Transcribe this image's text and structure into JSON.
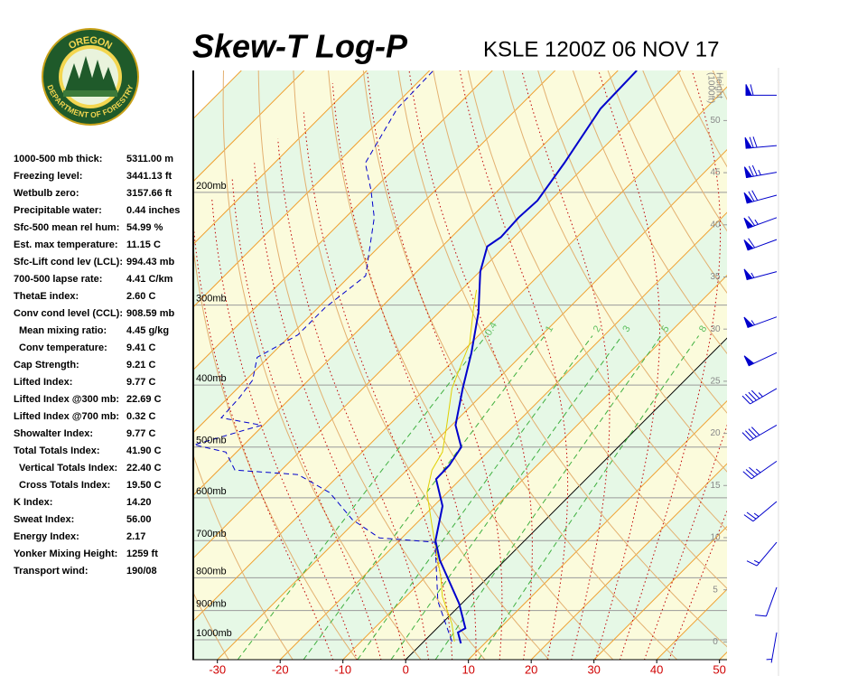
{
  "logo": {
    "top": "OREGON",
    "bottom": "DEPARTMENT OF FORESTRY"
  },
  "stats": [
    [
      "1000-500 mb thick:",
      "5311.00 m"
    ],
    [
      "Freezing level:",
      "3441.13 ft"
    ],
    [
      "Wetbulb zero:",
      "3157.66 ft"
    ],
    [
      "Precipitable water:",
      "0.44 inches"
    ],
    [
      "Sfc-500 mean rel hum:",
      "54.99 %"
    ],
    [
      "Est. max temperature:",
      "11.15 C"
    ],
    [
      "Sfc-Lift cond lev (LCL):",
      "994.43 mb"
    ],
    [
      "700-500 lapse rate:",
      "4.41 C/km"
    ],
    [
      "ThetaE index:",
      "2.60 C"
    ],
    [
      "Conv cond level (CCL):",
      "908.59 mb"
    ],
    [
      "Mean mixing ratio:",
      "4.45 g/kg"
    ],
    [
      "Conv temperature:",
      "9.41 C"
    ],
    [
      "Cap Strength:",
      "9.21 C"
    ],
    [
      "Lifted Index:",
      "9.77 C"
    ],
    [
      "Lifted Index @300 mb:",
      "22.69 C"
    ],
    [
      "Lifted Index @700 mb:",
      "0.32 C"
    ],
    [
      "Showalter Index:",
      "9.77 C"
    ],
    [
      "Total Totals Index:",
      "41.90 C"
    ],
    [
      "Vertical Totals Index:",
      "22.40 C"
    ],
    [
      "Cross Totals Index:",
      "19.50 C"
    ],
    [
      "K Index:",
      "14.20"
    ],
    [
      "Sweat Index:",
      "56.00"
    ],
    [
      "Energy Index:",
      "2.17"
    ],
    [
      "Yonker Mixing Height:",
      "1259 ft"
    ],
    [
      "Transport wind:",
      "190/08"
    ]
  ],
  "chart_data": {
    "type": "skewt",
    "title": "Skew-T Log-P",
    "subtitle": "KSLE 1200Z 06 NOV 17",
    "xlim": [
      -33.7,
      51.2
    ],
    "xticks": [
      -30,
      -20,
      -10,
      0,
      10,
      20,
      30,
      40,
      50
    ],
    "ylim": [
      1074,
      129
    ],
    "log_y": true,
    "yticks": [
      {
        "value": 1000,
        "label": "1000mb"
      },
      {
        "value": 900,
        "label": "900mb"
      },
      {
        "value": 800,
        "label": "800mb"
      },
      {
        "value": 700,
        "label": "700mb"
      },
      {
        "value": 600,
        "label": "600mb"
      },
      {
        "value": 500,
        "label": "500mb"
      },
      {
        "value": 400,
        "label": "400mb"
      },
      {
        "value": 300,
        "label": "300mb"
      },
      {
        "value": 200,
        "label": "200mb"
      }
    ],
    "y2label": [
      "Height",
      "(1000ft)"
    ],
    "y2lim": [
      -1.7,
      54.8
    ],
    "y2ticks": [
      0,
      5,
      10,
      15,
      20,
      25,
      30,
      35,
      40,
      45,
      50
    ],
    "mixing_ratios": [
      0.4,
      1,
      2,
      3,
      5,
      8
    ],
    "series": [
      {
        "color": "#e0d000",
        "style": "solid",
        "pressure": [
          1006.5,
          943,
          856,
          802,
          660,
          589,
          543,
          509,
          462,
          405,
          368,
          345,
          303,
          284
        ],
        "values": [
          4.9,
          1.6,
          -4.2,
          -7.3,
          -17.4,
          -23.2,
          -26.0,
          -27.2,
          -30.8,
          -35.8,
          -38.4,
          -40.1,
          -45.2,
          -47.6
        ]
      },
      {
        "color": "#0000cc",
        "style": "dashed",
        "pressure": [
          1006.5,
          870,
          704,
          693,
          649,
          589,
          552,
          543,
          509,
          496,
          462,
          450,
          419,
          393,
          362,
          334,
          303,
          270,
          241,
          219,
          198,
          180,
          148,
          129
        ],
        "values": [
          4.5,
          -4.2,
          -14.0,
          -23.6,
          -30.8,
          -38.7,
          -46.6,
          -57.4,
          -61.7,
          -67.9,
          -60.3,
          -67.9,
          -68.2,
          -68.9,
          -71.8,
          -68.9,
          -68.9,
          -67.5,
          -71.8,
          -75.4,
          -80.4,
          -85.5,
          -89.1,
          -89.4
        ]
      },
      {
        "color": "#0000cc",
        "style": "solid",
        "pressure": [
          1013,
          974,
          959,
          878,
          751,
          700,
          618,
          561,
          534,
          500,
          462,
          405,
          356,
          308,
          266,
          243,
          235,
          219,
          206,
          180,
          148,
          129
        ],
        "values": [
          6.2,
          4.0,
          4.5,
          -0.4,
          -10.4,
          -14.2,
          -18.6,
          -23.9,
          -24.0,
          -25.0,
          -29.4,
          -34.1,
          -38.4,
          -43.7,
          -49.9,
          -52.8,
          -52.1,
          -52.4,
          -52.1,
          -53.8,
          -56.7,
          -57.0
        ]
      }
    ],
    "winds": {
      "color": "#0000cc",
      "pressure": [
        141,
        169,
        186,
        202,
        219,
        237,
        266,
        313,
        356,
        405,
        462,
        526,
        608,
        704,
        828,
        974
      ],
      "direction": [
        270,
        265,
        260,
        255,
        250,
        250,
        255,
        250,
        245,
        240,
        240,
        235,
        230,
        220,
        200,
        190
      ],
      "speed": [
        60,
        70,
        75,
        70,
        65,
        60,
        55,
        55,
        50,
        45,
        40,
        35,
        25,
        15,
        10,
        8
      ]
    }
  }
}
